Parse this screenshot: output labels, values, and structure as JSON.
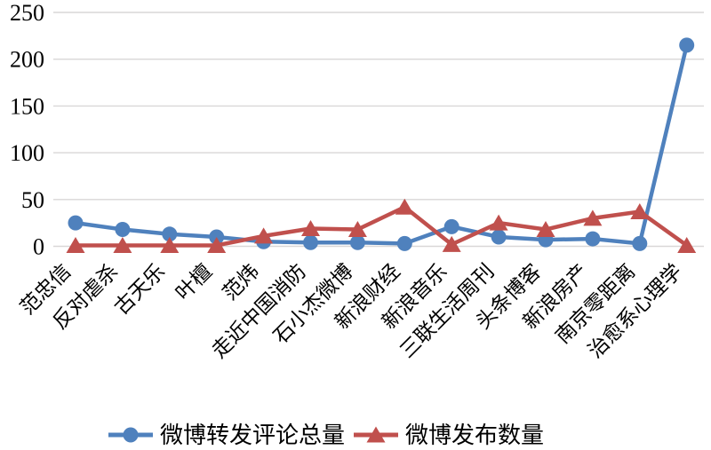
{
  "chart_data": {
    "type": "line",
    "title": "",
    "xlabel": "",
    "ylabel": "",
    "categories": [
      "范忠信",
      "反对虐杀",
      "古天乐",
      "叶檀",
      "范炜",
      "走近中国消防",
      "石小杰微博",
      "新浪财经",
      "新浪音乐",
      "三联生活周刊",
      "头条博客",
      "新浪房产",
      "南京零距离",
      "治愈系心理学"
    ],
    "series": [
      {
        "name": "微博转发评论总量",
        "marker": "circle",
        "color": "#4F81BD",
        "values": [
          25,
          18,
          13,
          10,
          5,
          4,
          4,
          3,
          21,
          10,
          7,
          8,
          3,
          215
        ]
      },
      {
        "name": "微博发布数量",
        "marker": "triangle",
        "color": "#C0504D",
        "values": [
          1,
          1,
          1,
          1,
          11,
          19,
          18,
          42,
          2,
          25,
          18,
          30,
          37,
          1
        ]
      }
    ],
    "ylim": [
      0,
      250
    ],
    "yticks": [
      0,
      50,
      100,
      150,
      200,
      250
    ],
    "grid": "horizontal",
    "legend_position": "bottom"
  },
  "colors": {
    "grid": "#D9D7D7",
    "text": "#000000",
    "background": "#FFFFFF",
    "series_blue": "#4F81BD",
    "series_red": "#C0504D"
  }
}
